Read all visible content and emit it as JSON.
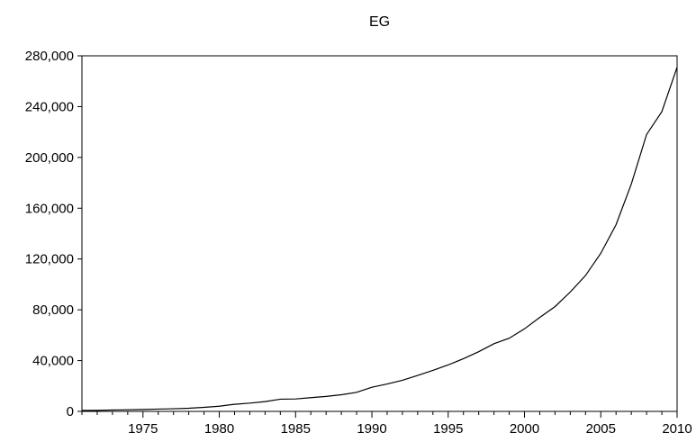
{
  "chart_data": {
    "type": "line",
    "title": "EG",
    "xlabel": "",
    "ylabel": "",
    "grid": false,
    "legend": "none",
    "xlim": [
      1971,
      2010
    ],
    "ylim": [
      0,
      280000
    ],
    "x_ticks": [
      1975,
      1980,
      1985,
      1990,
      1995,
      2000,
      2005,
      2010
    ],
    "y_ticks": [
      0,
      40000,
      80000,
      120000,
      160000,
      200000,
      240000,
      280000
    ],
    "y_tick_labels": [
      "0",
      "40,000",
      "80,000",
      "120,000",
      "160,000",
      "200,000",
      "240,000",
      "280,000"
    ],
    "line_color": "#000000",
    "series": [
      {
        "x": [
          1971,
          1972,
          1973,
          1974,
          1975,
          1976,
          1977,
          1978,
          1979,
          1980,
          1981,
          1982,
          1983,
          1984,
          1985,
          1986,
          1987,
          1988,
          1989,
          1990,
          1991,
          1992,
          1993,
          1994,
          1995,
          1996,
          1997,
          1998,
          1999,
          2000,
          2001,
          2002,
          2003,
          2004,
          2005,
          2006,
          2007,
          2008,
          2009,
          2010
        ],
        "values": [
          700,
          800,
          1100,
          1300,
          1500,
          1800,
          2100,
          2500,
          3200,
          4100,
          5600,
          6500,
          7700,
          9600,
          9800,
          10800,
          11800,
          13100,
          15000,
          19000,
          21600,
          24500,
          28300,
          32300,
          36600,
          41500,
          47000,
          53300,
          57600,
          65000,
          74000,
          82500,
          94000,
          107000,
          124500,
          147000,
          179000,
          218000,
          236000,
          271000
        ]
      }
    ]
  }
}
